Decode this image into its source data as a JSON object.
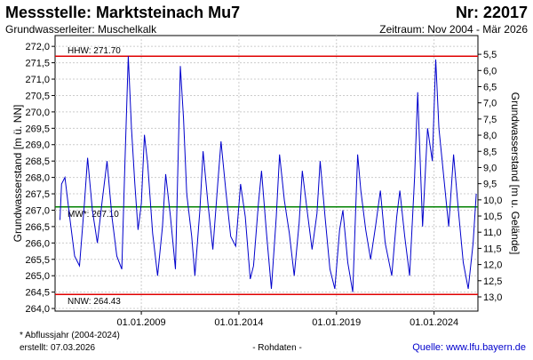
{
  "chart_data": {
    "type": "line",
    "title": "Messstelle: Marktsteinach Mu7",
    "title_right": "Nr: 22017",
    "subtitle": "Grundwasserleiter: Muschelkalk",
    "subtitle_right": "Zeitraum: Nov 2004 - Mär 2026",
    "ylabel": "Grundwasserstand [m ü. NN]",
    "y2label": "Grundwasserstand [m u. Gelände]",
    "footnote": "* Abflussjahr (2004-2024)",
    "created": "erstellt:  07.03.2026",
    "note": "- Rohdaten -",
    "source": "Quelle: www.lfu.bayern.de",
    "xlim": [
      "2004-08-01",
      "2026-04-01"
    ],
    "xticks": [
      {
        "value": "2009-01-01",
        "label": "01.01.2009"
      },
      {
        "value": "2014-01-01",
        "label": "01.01.2014"
      },
      {
        "value": "2019-01-01",
        "label": "01.01.2019"
      },
      {
        "value": "2024-01-01",
        "label": "01.01.2024"
      }
    ],
    "ylim": [
      263.92,
      272.33
    ],
    "yticks": [
      {
        "value": 264,
        "label": "264,0"
      },
      {
        "value": 264.5,
        "label": "264,5"
      },
      {
        "value": 265,
        "label": "265,0"
      },
      {
        "value": 265.5,
        "label": "265,5"
      },
      {
        "value": 266,
        "label": "266,0"
      },
      {
        "value": 266.5,
        "label": "266,5"
      },
      {
        "value": 267,
        "label": "267,0"
      },
      {
        "value": 267.5,
        "label": "267,5"
      },
      {
        "value": 268,
        "label": "268,0"
      },
      {
        "value": 268.5,
        "label": "268,5"
      },
      {
        "value": 269,
        "label": "269,0"
      },
      {
        "value": 269.5,
        "label": "269,5"
      },
      {
        "value": 270,
        "label": "270,0"
      },
      {
        "value": 270.5,
        "label": "270,5"
      },
      {
        "value": 271,
        "label": "271,0"
      },
      {
        "value": 271.5,
        "label": "271,5"
      },
      {
        "value": 272,
        "label": "272,0"
      }
    ],
    "y2lim": [
      13.44,
      4.92
    ],
    "y2ticks": [
      {
        "value": 5.5,
        "label": "5,5"
      },
      {
        "value": 6,
        "label": "6,0"
      },
      {
        "value": 6.5,
        "label": "6,5"
      },
      {
        "value": 7,
        "label": "7,0"
      },
      {
        "value": 7.5,
        "label": "7,5"
      },
      {
        "value": 8,
        "label": "8,0"
      },
      {
        "value": 8.5,
        "label": "8,5"
      },
      {
        "value": 9,
        "label": "9,0"
      },
      {
        "value": 9.5,
        "label": "9,5"
      },
      {
        "value": 10,
        "label": "10,0"
      },
      {
        "value": 10.5,
        "label": "10,5"
      },
      {
        "value": 11,
        "label": "11,0"
      },
      {
        "value": 11.5,
        "label": "11,5"
      },
      {
        "value": 12,
        "label": "12,0"
      },
      {
        "value": 12.5,
        "label": "12,5"
      },
      {
        "value": 13,
        "label": "13,0"
      }
    ],
    "grid": true,
    "reference_lines": [
      {
        "label": "HHW: 271.70",
        "value": 271.7,
        "color": "#e00000"
      },
      {
        "label": "MW*: 267.10",
        "value": 267.1,
        "color": "#008000"
      },
      {
        "label": "NNW: 264.43",
        "value": 264.43,
        "color": "#e00000"
      }
    ],
    "x": [
      "2004-11-01",
      "2004-12-01",
      "2005-02-01",
      "2005-05-01",
      "2005-08-01",
      "2005-11-01",
      "2006-02-01",
      "2006-04-01",
      "2006-07-01",
      "2006-10-01",
      "2007-01-01",
      "2007-04-01",
      "2007-07-01",
      "2007-10-01",
      "2008-01-01",
      "2008-03-01",
      "2008-05-01",
      "2008-07-01",
      "2008-09-01",
      "2008-11-01",
      "2009-01-01",
      "2009-03-01",
      "2009-05-01",
      "2009-08-01",
      "2009-11-01",
      "2010-02-01",
      "2010-04-01",
      "2010-07-01",
      "2010-10-01",
      "2011-01-01",
      "2011-03-01",
      "2011-05-01",
      "2011-08-01",
      "2011-10-01",
      "2012-01-01",
      "2012-03-01",
      "2012-06-01",
      "2012-09-01",
      "2012-12-01",
      "2013-02-01",
      "2013-05-01",
      "2013-08-01",
      "2013-11-01",
      "2014-02-01",
      "2014-05-01",
      "2014-08-01",
      "2014-10-01",
      "2015-01-01",
      "2015-03-01",
      "2015-06-01",
      "2015-09-01",
      "2015-12-01",
      "2016-02-01",
      "2016-05-01",
      "2016-08-01",
      "2016-11-01",
      "2017-02-01",
      "2017-04-01",
      "2017-07-01",
      "2017-10-01",
      "2018-01-01",
      "2018-03-01",
      "2018-06-01",
      "2018-09-01",
      "2018-12-01",
      "2019-03-01",
      "2019-05-01",
      "2019-08-01",
      "2019-11-01",
      "2020-02-01",
      "2020-04-01",
      "2020-07-01",
      "2020-10-01",
      "2021-01-01",
      "2021-04-01",
      "2021-07-01",
      "2021-11-01",
      "2022-02-01",
      "2022-04-01",
      "2022-07-01",
      "2022-10-01",
      "2023-01-01",
      "2023-03-01",
      "2023-06-01",
      "2023-09-01",
      "2023-12-01",
      "2024-02-01",
      "2024-04-01",
      "2024-07-01",
      "2024-10-01",
      "2025-01-01",
      "2025-04-01",
      "2025-07-01",
      "2025-10-01",
      "2026-01-01",
      "2026-03-01"
    ],
    "series": [
      {
        "color": "#0000cc",
        "values": [
          266.7,
          267.8,
          268.0,
          266.8,
          265.6,
          265.3,
          267.2,
          268.6,
          267.0,
          266.0,
          267.3,
          268.5,
          266.8,
          265.6,
          265.2,
          268.5,
          271.7,
          269.5,
          267.8,
          266.4,
          267.2,
          269.3,
          268.4,
          266.3,
          265.0,
          266.5,
          268.1,
          266.8,
          265.2,
          271.4,
          269.8,
          267.5,
          266.2,
          265.0,
          267.0,
          268.8,
          267.2,
          265.8,
          267.8,
          269.1,
          267.6,
          266.2,
          265.9,
          267.8,
          266.8,
          264.9,
          265.3,
          267.2,
          268.2,
          266.3,
          264.6,
          266.8,
          268.7,
          267.3,
          266.3,
          265.0,
          266.6,
          268.2,
          267.0,
          265.8,
          266.9,
          268.5,
          266.8,
          265.2,
          264.6,
          266.4,
          267.0,
          265.4,
          264.5,
          268.7,
          267.6,
          266.4,
          265.5,
          266.5,
          267.6,
          266.0,
          265.0,
          266.8,
          267.6,
          266.2,
          265.0,
          268.0,
          270.6,
          266.5,
          269.5,
          268.5,
          271.6,
          269.5,
          268.0,
          266.5,
          268.7,
          267.0,
          265.4,
          264.6,
          266.0,
          267.5
        ]
      }
    ]
  }
}
